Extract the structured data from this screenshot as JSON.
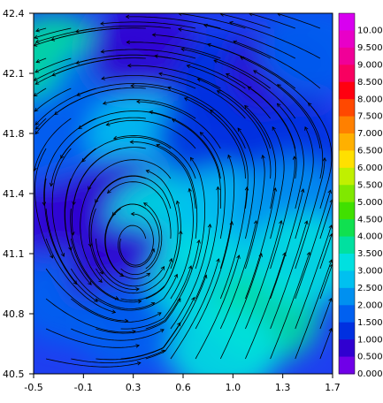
{
  "chart_data": {
    "type": "heatmap",
    "title": "",
    "xlabel": "",
    "ylabel": "",
    "xlim": [
      -0.5,
      1.7
    ],
    "ylim": [
      40.5,
      42.4
    ],
    "x_ticks": [
      "-0.5",
      "-0.1",
      "0.3",
      "0.6",
      "1.0",
      "1.3",
      "1.7"
    ],
    "y_ticks": [
      "42.4",
      "42.1",
      "41.8",
      "41.4",
      "41.1",
      "40.8",
      "40.5"
    ],
    "colorbar": {
      "labels": [
        "10.00",
        "9.500",
        "9.000",
        "8.500",
        "8.000",
        "7.500",
        "7.000",
        "6.500",
        "6.000",
        "5.500",
        "5.000",
        "4.500",
        "4.000",
        "3.500",
        "3.000",
        "2.500",
        "2.000",
        "1.500",
        "1.000",
        "0.500",
        "0.000"
      ],
      "colors": [
        "#d800f0",
        "#e800c8",
        "#f00098",
        "#f80060",
        "#ff0010",
        "#ff4800",
        "#ff8000",
        "#ffb000",
        "#ffe000",
        "#c0f000",
        "#80e800",
        "#40e000",
        "#10e050",
        "#00e0a0",
        "#00e0e0",
        "#00c0f0",
        "#0090f0",
        "#0060f0",
        "#0030e0",
        "#3000d0",
        "#7000e8"
      ]
    },
    "overlay": "streamlines",
    "field_regions": [
      {
        "x": -0.35,
        "y": 42.15,
        "value": 3.5
      },
      {
        "x": 0.05,
        "y": 42.0,
        "value": 1.5
      },
      {
        "x": 0.3,
        "y": 42.2,
        "value": 0.5
      },
      {
        "x": 0.9,
        "y": 42.05,
        "value": 1.0
      },
      {
        "x": 1.35,
        "y": 42.1,
        "value": 0.5
      },
      {
        "x": 1.55,
        "y": 42.2,
        "value": 1.5
      },
      {
        "x": -0.3,
        "y": 41.75,
        "value": 1.5
      },
      {
        "x": 0.3,
        "y": 41.75,
        "value": 2.5
      },
      {
        "x": 0.8,
        "y": 41.75,
        "value": 1.0
      },
      {
        "x": 1.4,
        "y": 41.7,
        "value": 1.0
      },
      {
        "x": -0.2,
        "y": 41.3,
        "value": 0.5
      },
      {
        "x": 0.15,
        "y": 41.4,
        "value": 0.5
      },
      {
        "x": 0.45,
        "y": 41.3,
        "value": 3.0
      },
      {
        "x": 0.9,
        "y": 41.35,
        "value": 2.5
      },
      {
        "x": 1.4,
        "y": 41.4,
        "value": 2.0
      },
      {
        "x": -0.25,
        "y": 40.9,
        "value": 1.5
      },
      {
        "x": 0.15,
        "y": 41.05,
        "value": 0.5
      },
      {
        "x": 0.2,
        "y": 40.75,
        "value": 1.5
      },
      {
        "x": 0.75,
        "y": 41.0,
        "value": 3.0
      },
      {
        "x": 1.2,
        "y": 40.8,
        "value": 3.5
      },
      {
        "x": 1.5,
        "y": 41.1,
        "value": 3.0
      },
      {
        "x": 0.9,
        "y": 40.62,
        "value": 3.0
      }
    ]
  }
}
